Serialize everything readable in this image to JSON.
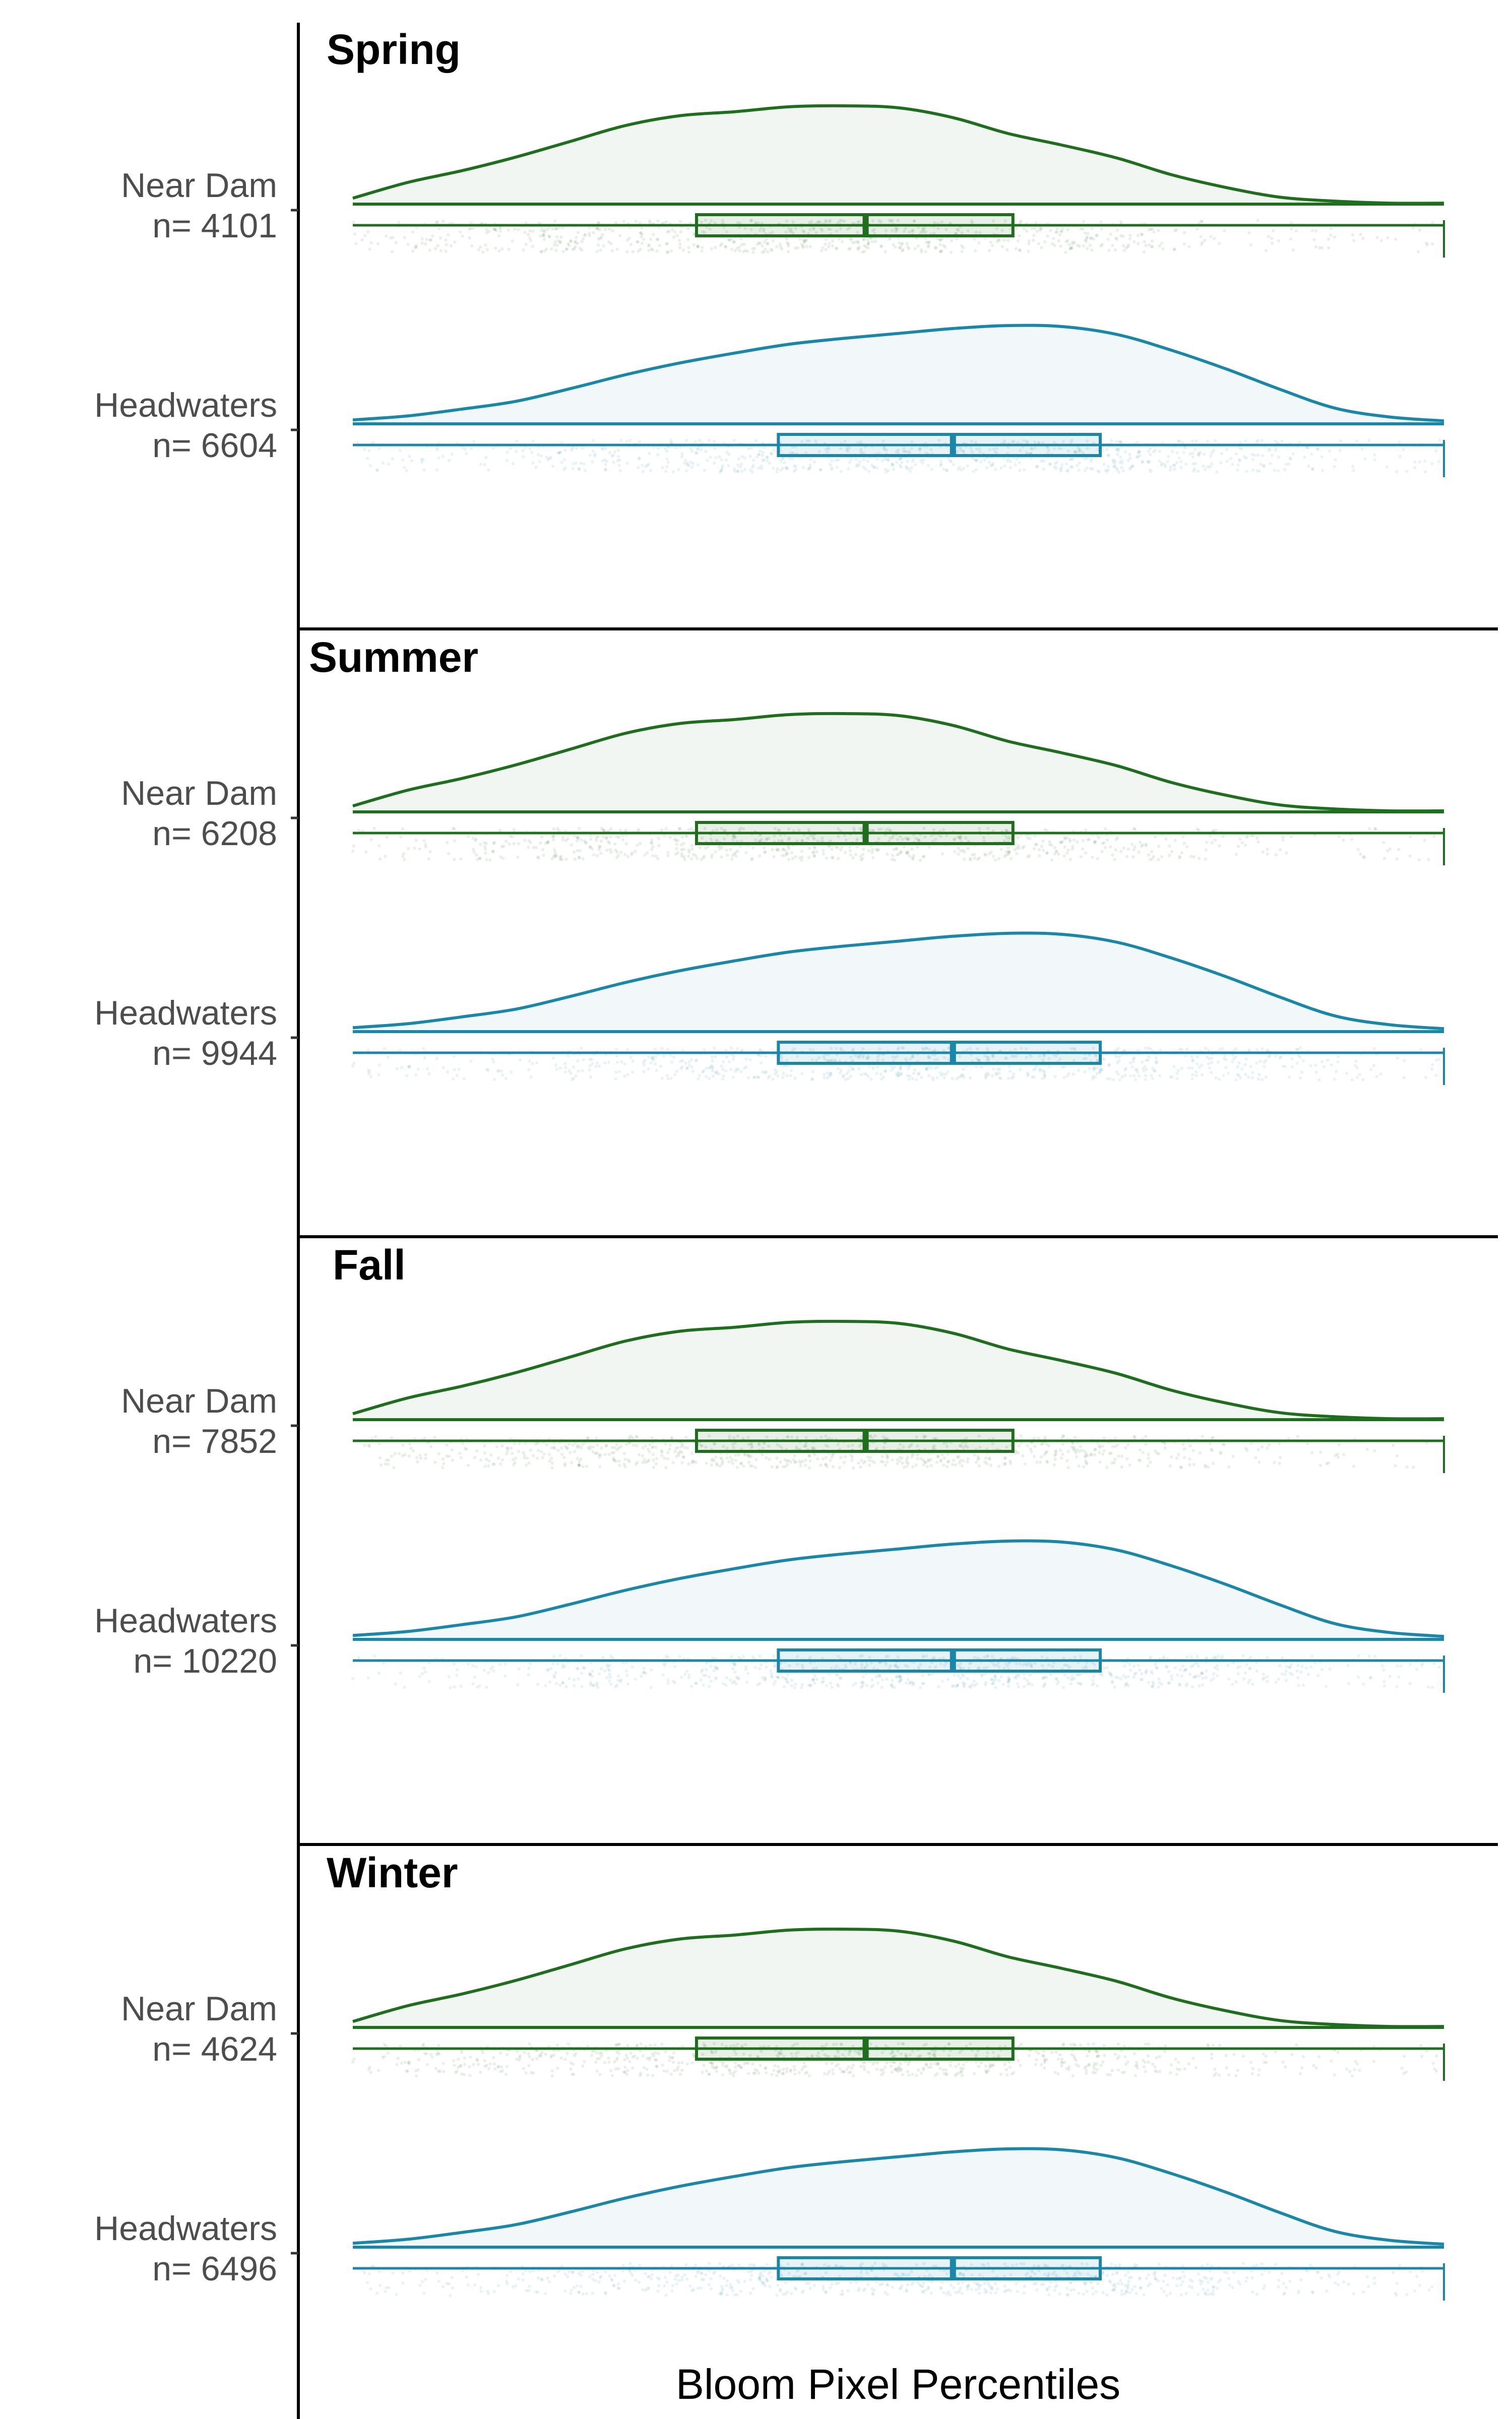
{
  "chart_data": {
    "type": "raincloud",
    "xlabel": "Bloom Pixel Percentiles",
    "xlim": [
      0,
      100
    ],
    "colors": {
      "Near Dam": "#1e6e1e",
      "Headwaters": "#1a87a8"
    },
    "density_x": [
      0,
      5,
      10,
      15,
      20,
      25,
      30,
      35,
      40,
      45,
      50,
      55,
      60,
      65,
      70,
      75,
      80,
      85,
      90,
      95,
      100
    ],
    "panels": [
      {
        "title": "Spring",
        "groups": [
          {
            "label": "Near Dam",
            "n_label": "n= 4101",
            "density": [
              0.06,
              0.22,
              0.34,
              0.48,
              0.64,
              0.8,
              0.9,
              0.94,
              0.99,
              1.0,
              0.98,
              0.88,
              0.72,
              0.6,
              0.47,
              0.3,
              0.17,
              0.07,
              0.03,
              0.01,
              0.01
            ],
            "box": {
              "q1": 31.5,
              "median": 47,
              "q3": 60.5
            }
          },
          {
            "label": "Headwaters",
            "n_label": "n= 6604",
            "density": [
              0.04,
              0.08,
              0.15,
              0.23,
              0.36,
              0.5,
              0.62,
              0.72,
              0.81,
              0.87,
              0.92,
              0.97,
              1.0,
              0.99,
              0.91,
              0.75,
              0.56,
              0.35,
              0.16,
              0.07,
              0.03
            ],
            "box": {
              "q1": 39,
              "median": 55,
              "q3": 68.5
            }
          }
        ]
      },
      {
        "title": "Summer",
        "groups": [
          {
            "label": "Near Dam",
            "n_label": "n= 6208",
            "density": [
              0.06,
              0.22,
              0.34,
              0.48,
              0.64,
              0.8,
              0.9,
              0.94,
              0.99,
              1.0,
              0.98,
              0.88,
              0.72,
              0.6,
              0.47,
              0.3,
              0.17,
              0.07,
              0.03,
              0.01,
              0.01
            ],
            "box": {
              "q1": 31.5,
              "median": 47,
              "q3": 60.5
            }
          },
          {
            "label": "Headwaters",
            "n_label": "n= 9944",
            "density": [
              0.04,
              0.08,
              0.15,
              0.23,
              0.36,
              0.5,
              0.62,
              0.72,
              0.81,
              0.87,
              0.92,
              0.97,
              1.0,
              0.99,
              0.91,
              0.75,
              0.56,
              0.35,
              0.16,
              0.07,
              0.03
            ],
            "box": {
              "q1": 39,
              "median": 55,
              "q3": 68.5
            }
          }
        ]
      },
      {
        "title": "Fall",
        "groups": [
          {
            "label": "Near Dam",
            "n_label": "n= 7852",
            "density": [
              0.06,
              0.22,
              0.34,
              0.48,
              0.64,
              0.8,
              0.9,
              0.94,
              0.99,
              1.0,
              0.98,
              0.88,
              0.72,
              0.6,
              0.47,
              0.3,
              0.17,
              0.07,
              0.03,
              0.01,
              0.01
            ],
            "box": {
              "q1": 31.5,
              "median": 47,
              "q3": 60.5
            }
          },
          {
            "label": "Headwaters",
            "n_label": "n= 10220",
            "density": [
              0.04,
              0.08,
              0.15,
              0.23,
              0.36,
              0.5,
              0.62,
              0.72,
              0.81,
              0.87,
              0.92,
              0.97,
              1.0,
              0.99,
              0.91,
              0.75,
              0.56,
              0.35,
              0.16,
              0.07,
              0.03
            ],
            "box": {
              "q1": 39,
              "median": 55,
              "q3": 68.5
            }
          }
        ]
      },
      {
        "title": "Winter",
        "groups": [
          {
            "label": "Near Dam",
            "n_label": "n= 4624",
            "density": [
              0.06,
              0.22,
              0.34,
              0.48,
              0.64,
              0.8,
              0.9,
              0.94,
              0.99,
              1.0,
              0.98,
              0.88,
              0.72,
              0.6,
              0.47,
              0.3,
              0.17,
              0.07,
              0.03,
              0.01,
              0.01
            ],
            "box": {
              "q1": 31.5,
              "median": 47,
              "q3": 60.5
            }
          },
          {
            "label": "Headwaters",
            "n_label": "n= 6496",
            "density": [
              0.04,
              0.08,
              0.15,
              0.23,
              0.36,
              0.5,
              0.62,
              0.72,
              0.81,
              0.87,
              0.92,
              0.97,
              1.0,
              0.99,
              0.91,
              0.75,
              0.56,
              0.35,
              0.16,
              0.07,
              0.03
            ],
            "box": {
              "q1": 39,
              "median": 55,
              "q3": 68.5
            }
          }
        ]
      }
    ]
  }
}
